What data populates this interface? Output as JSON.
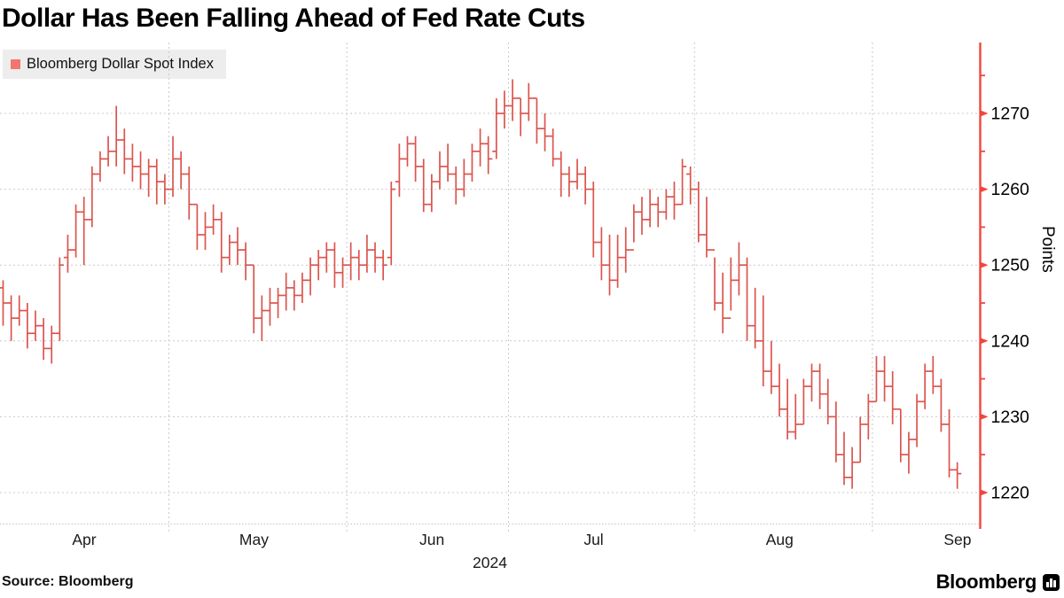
{
  "title": "Dollar Has Been Falling Ahead of Fed Rate Cuts",
  "source": "Source:  Bloomberg",
  "branding": {
    "logo_text": "Bloomberg"
  },
  "colors": {
    "bar": "#DB554E",
    "axis": "#F2463C",
    "legend_swatch": "#F3766E",
    "grid": "#c9c9c9",
    "legend_bg": "#ededed",
    "month_label": "#1a1a1a"
  },
  "chart_data": {
    "type": "ohlc",
    "series_name": "Bloomberg Dollar Spot Index",
    "y_axis": {
      "label": "Points",
      "major_ticks": [
        1220,
        1230,
        1240,
        1250,
        1260,
        1270
      ],
      "minor_ticks": [
        1215,
        1225,
        1235,
        1245,
        1255,
        1265,
        1275
      ],
      "range": [
        1213,
        1279
      ]
    },
    "x_axis": {
      "months": [
        {
          "label": "Apr",
          "days": 21
        },
        {
          "label": "May",
          "days": 22
        },
        {
          "label": "Jun",
          "days": 20
        },
        {
          "label": "Jul",
          "days": 23
        },
        {
          "label": "Aug",
          "days": 22
        },
        {
          "label": "Sep",
          "days": 11
        }
      ],
      "year_label": "2024"
    },
    "bars_format": [
      "high",
      "low",
      "open",
      "close"
    ],
    "bars": [
      [
        1248,
        1242,
        1247,
        1245
      ],
      [
        1246,
        1240,
        1245,
        1243
      ],
      [
        1246,
        1242,
        1243,
        1244
      ],
      [
        1245,
        1239,
        1244,
        1241
      ],
      [
        1244,
        1240,
        1241,
        1242
      ],
      [
        1243,
        1237.5,
        1242,
        1239
      ],
      [
        1242,
        1237,
        1239,
        1241
      ],
      [
        1251,
        1240,
        1241,
        1250
      ],
      [
        1254,
        1249,
        1251,
        1252
      ],
      [
        1258,
        1251,
        1252,
        1257
      ],
      [
        1259,
        1250,
        1257,
        1256
      ],
      [
        1263,
        1255,
        1256,
        1262
      ],
      [
        1265,
        1261,
        1262,
        1264
      ],
      [
        1267,
        1263,
        1264,
        1265
      ],
      [
        1271,
        1263,
        1265,
        1266.5
      ],
      [
        1268,
        1262,
        1266.5,
        1264
      ],
      [
        1266,
        1261,
        1264,
        1263
      ],
      [
        1265,
        1260,
        1263,
        1262
      ],
      [
        1264,
        1259,
        1262,
        1263
      ],
      [
        1264,
        1258,
        1263,
        1261
      ],
      [
        1262,
        1258,
        1261,
        1260
      ],
      [
        1267,
        1259,
        1260,
        1264
      ],
      [
        1265,
        1260,
        1264,
        1262
      ],
      [
        1263,
        1256,
        1262,
        1258
      ],
      [
        1258,
        1252,
        1258,
        1254
      ],
      [
        1257,
        1252,
        1254,
        1255
      ],
      [
        1258,
        1254,
        1255,
        1256
      ],
      [
        1257,
        1249,
        1256,
        1251
      ],
      [
        1254,
        1250,
        1251,
        1253
      ],
      [
        1255,
        1250,
        1253,
        1252
      ],
      [
        1253,
        1248,
        1252,
        1250
      ],
      [
        1250,
        1241,
        1250,
        1243
      ],
      [
        1246,
        1240,
        1243,
        1244
      ],
      [
        1247,
        1242,
        1244,
        1245
      ],
      [
        1247,
        1243,
        1245,
        1246
      ],
      [
        1249,
        1244,
        1246,
        1247
      ],
      [
        1248,
        1244,
        1247,
        1246
      ],
      [
        1249,
        1245,
        1246,
        1248
      ],
      [
        1251,
        1246,
        1248,
        1250
      ],
      [
        1252,
        1248,
        1250,
        1251
      ],
      [
        1253,
        1249,
        1251,
        1252
      ],
      [
        1253,
        1247,
        1252,
        1249
      ],
      [
        1251,
        1247,
        1249,
        1250
      ],
      [
        1253,
        1248,
        1250,
        1251
      ],
      [
        1252,
        1248,
        1251,
        1250
      ],
      [
        1254,
        1249,
        1250,
        1252
      ],
      [
        1253,
        1249,
        1252,
        1251
      ],
      [
        1252,
        1248,
        1251,
        1250
      ],
      [
        1261,
        1250,
        1251,
        1260
      ],
      [
        1266,
        1259,
        1261,
        1264
      ],
      [
        1267,
        1263,
        1264,
        1266
      ],
      [
        1267,
        1261,
        1266,
        1263
      ],
      [
        1264,
        1257,
        1263,
        1258
      ],
      [
        1262,
        1257,
        1258,
        1261
      ],
      [
        1265,
        1260,
        1261,
        1263
      ],
      [
        1266,
        1261,
        1263,
        1262
      ],
      [
        1263,
        1258,
        1262,
        1260
      ],
      [
        1264,
        1259,
        1260,
        1262
      ],
      [
        1266,
        1261,
        1262,
        1265
      ],
      [
        1268,
        1263,
        1265,
        1266
      ],
      [
        1267,
        1262,
        1266,
        1264
      ],
      [
        1272,
        1264,
        1265,
        1270
      ],
      [
        1273,
        1268,
        1270,
        1271
      ],
      [
        1274.5,
        1269,
        1271,
        1272
      ],
      [
        1272,
        1267,
        1272,
        1270
      ],
      [
        1274,
        1269,
        1270,
        1272
      ],
      [
        1272,
        1266,
        1272,
        1268
      ],
      [
        1270,
        1265,
        1268,
        1267
      ],
      [
        1268,
        1263,
        1267,
        1264
      ],
      [
        1265,
        1259,
        1264,
        1262
      ],
      [
        1263,
        1259,
        1262,
        1261
      ],
      [
        1264,
        1260,
        1261,
        1262
      ],
      [
        1263,
        1258,
        1262,
        1260
      ],
      [
        1261,
        1251,
        1260,
        1253
      ],
      [
        1255,
        1248,
        1253,
        1250
      ],
      [
        1254,
        1246,
        1250,
        1248
      ],
      [
        1254,
        1247,
        1248,
        1251
      ],
      [
        1255,
        1249,
        1251,
        1252
      ],
      [
        1258,
        1253,
        1252,
        1257
      ],
      [
        1259,
        1254,
        1257,
        1256
      ],
      [
        1260,
        1255,
        1256,
        1258
      ],
      [
        1259,
        1255,
        1258,
        1257
      ],
      [
        1260,
        1256,
        1257,
        1259
      ],
      [
        1261,
        1256,
        1259,
        1258
      ],
      [
        1264,
        1258,
        1258,
        1263
      ],
      [
        1263,
        1258,
        1262,
        1260
      ],
      [
        1261,
        1253,
        1260,
        1254
      ],
      [
        1259,
        1251,
        1254,
        1252
      ],
      [
        1251,
        1244,
        1252,
        1245
      ],
      [
        1249,
        1241,
        1245,
        1243
      ],
      [
        1251,
        1244,
        1243,
        1248
      ],
      [
        1253,
        1246,
        1248,
        1250
      ],
      [
        1251,
        1240,
        1250,
        1242
      ],
      [
        1247,
        1239,
        1242,
        1240
      ],
      [
        1246,
        1234,
        1240,
        1236
      ],
      [
        1240,
        1233,
        1236,
        1234
      ],
      [
        1237,
        1230,
        1234,
        1231
      ],
      [
        1235,
        1227,
        1231,
        1228
      ],
      [
        1233,
        1227,
        1228,
        1229
      ],
      [
        1235,
        1229,
        1229,
        1234
      ],
      [
        1237,
        1232,
        1234,
        1236
      ],
      [
        1237,
        1231,
        1236,
        1233
      ],
      [
        1235,
        1229,
        1233,
        1230
      ],
      [
        1232,
        1224,
        1230,
        1225
      ],
      [
        1228,
        1221,
        1225,
        1222
      ],
      [
        1226,
        1220.5,
        1222,
        1224
      ],
      [
        1230,
        1224,
        1224,
        1229
      ],
      [
        1233,
        1227,
        1229,
        1232
      ],
      [
        1238,
        1232,
        1232,
        1236
      ],
      [
        1238,
        1232,
        1236,
        1234
      ],
      [
        1236,
        1229,
        1234,
        1231
      ],
      [
        1231,
        1224,
        1231,
        1225
      ],
      [
        1228,
        1222.5,
        1225,
        1227
      ],
      [
        1233,
        1226,
        1227,
        1232
      ],
      [
        1237,
        1231,
        1232,
        1236
      ],
      [
        1238,
        1233,
        1236,
        1234
      ],
      [
        1235,
        1228,
        1234,
        1229
      ],
      [
        1231,
        1222,
        1229,
        1223
      ],
      [
        1224,
        1220.5,
        1223,
        1222.5
      ]
    ]
  }
}
